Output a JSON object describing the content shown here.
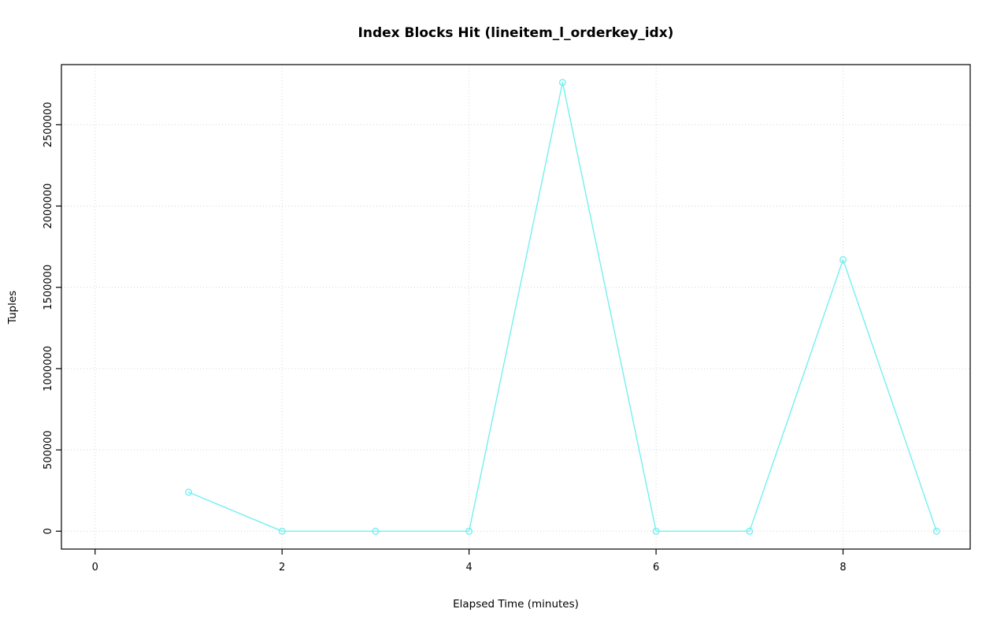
{
  "chart_data": {
    "type": "line",
    "title": "Index Blocks Hit (lineitem_l_orderkey_idx)",
    "xlabel": "Elapsed Time (minutes)",
    "ylabel": "Tuples",
    "x": [
      1,
      2,
      3,
      4,
      5,
      6,
      7,
      8,
      9
    ],
    "y": [
      240000,
      0,
      0,
      0,
      2760000,
      0,
      0,
      1670000,
      0
    ],
    "xlim": [
      -0.36,
      9.36
    ],
    "ylim": [
      -110000,
      2870000
    ],
    "xticks": [
      0,
      2,
      4,
      6,
      8
    ],
    "xtick_labels": [
      "0",
      "2",
      "4",
      "6",
      "8"
    ],
    "yticks": [
      0,
      500000,
      1000000,
      1500000,
      2000000,
      2500000
    ],
    "ytick_labels": [
      "0",
      "500000",
      "1000000",
      "1500000",
      "2000000",
      "2500000"
    ],
    "grid": true,
    "legend_position": "none",
    "line_color": "#76EFEF",
    "marker": "open-circle",
    "grid_color": "#D6D6D6",
    "axis_color": "#000000"
  }
}
